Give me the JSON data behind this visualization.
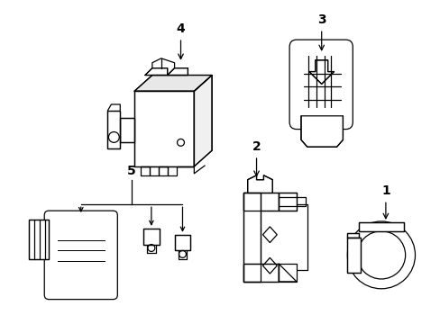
{
  "background_color": "#ffffff",
  "line_color": "#000000",
  "line_width": 0.9,
  "label_fontsize": 10,
  "figsize": [
    4.89,
    3.6
  ],
  "dpi": 100
}
